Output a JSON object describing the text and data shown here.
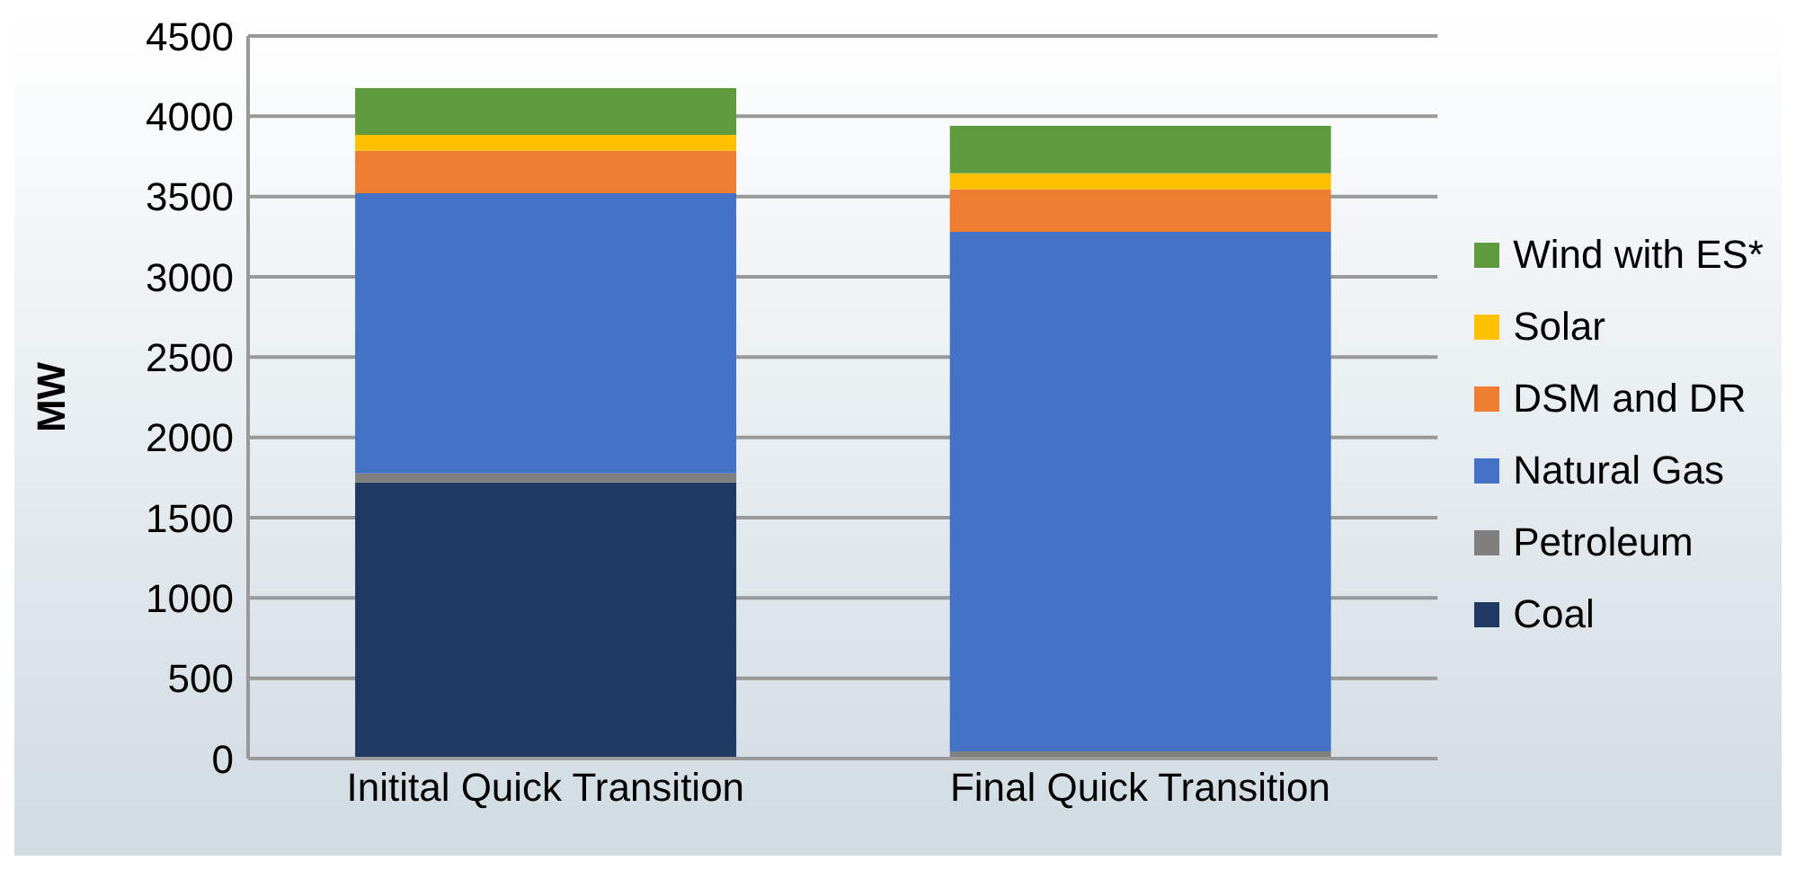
{
  "chart_data": {
    "type": "bar",
    "stacked": true,
    "ylabel": "MW",
    "categories": [
      "Initital Quick Transition",
      "Final Quick Transition"
    ],
    "series": [
      {
        "name": "Coal",
        "color": "#1f3864",
        "values": [
          1720,
          0
        ]
      },
      {
        "name": "Petroleum",
        "color": "#7f7f7f",
        "values": [
          55,
          45
        ]
      },
      {
        "name": "Natural Gas",
        "color": "#4472c4",
        "values": [
          1745,
          3235
        ]
      },
      {
        "name": "DSM and DR",
        "color": "#ed7d31",
        "values": [
          265,
          265
        ]
      },
      {
        "name": "Solar",
        "color": "#ffc000",
        "values": [
          100,
          100
        ]
      },
      {
        "name": "Wind with ES*",
        "color": "#609a3e",
        "values": [
          290,
          295
        ]
      }
    ],
    "ylim": [
      0,
      4500
    ],
    "yticks": [
      0,
      500,
      1000,
      1500,
      2000,
      2500,
      3000,
      3500,
      4000,
      4500
    ],
    "grid": "y",
    "legend": "right"
  }
}
